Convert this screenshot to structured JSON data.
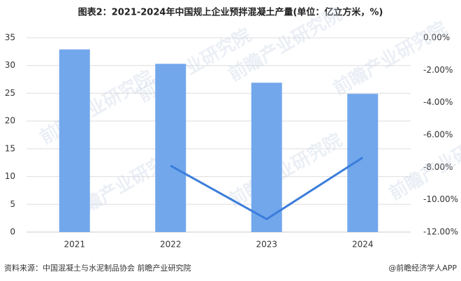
{
  "chart_data": {
    "type": "bar-line",
    "title": "图表2：2021-2024年中国规上企业预拌混凝土产量(单位：亿立方米，%)",
    "categories": [
      "2021",
      "2022",
      "2023",
      "2024"
    ],
    "series": [
      {
        "type": "bar",
        "color": "#72a7ec",
        "values": [
          32.9,
          30.3,
          26.9,
          24.9
        ]
      },
      {
        "type": "line",
        "axis": "y2",
        "color": "#3b7ddb",
        "values": [
          null,
          -7.9,
          -11.2,
          -7.4
        ]
      }
    ],
    "ylim": [
      0,
      35
    ],
    "yticks": [
      0,
      5,
      10,
      15,
      20,
      25,
      30,
      35
    ],
    "y2lim": [
      -12,
      0
    ],
    "y2ticks": [
      {
        "value": 0,
        "label": "0.00%"
      },
      {
        "value": -2,
        "label": "-2.00%"
      },
      {
        "value": -4,
        "label": "-4.00%"
      },
      {
        "value": -6,
        "label": "-6.00%"
      },
      {
        "value": -8,
        "label": "-8.00%"
      },
      {
        "value": -10,
        "label": "-10.00%"
      },
      {
        "value": -12,
        "label": "-12.00%"
      }
    ],
    "grid": true,
    "source": "资料来源：中国混凝土与水泥制品协会 前瞻产业研究院",
    "credit": "@前瞻经济学人APP",
    "watermark": "前瞻产业研究院"
  }
}
